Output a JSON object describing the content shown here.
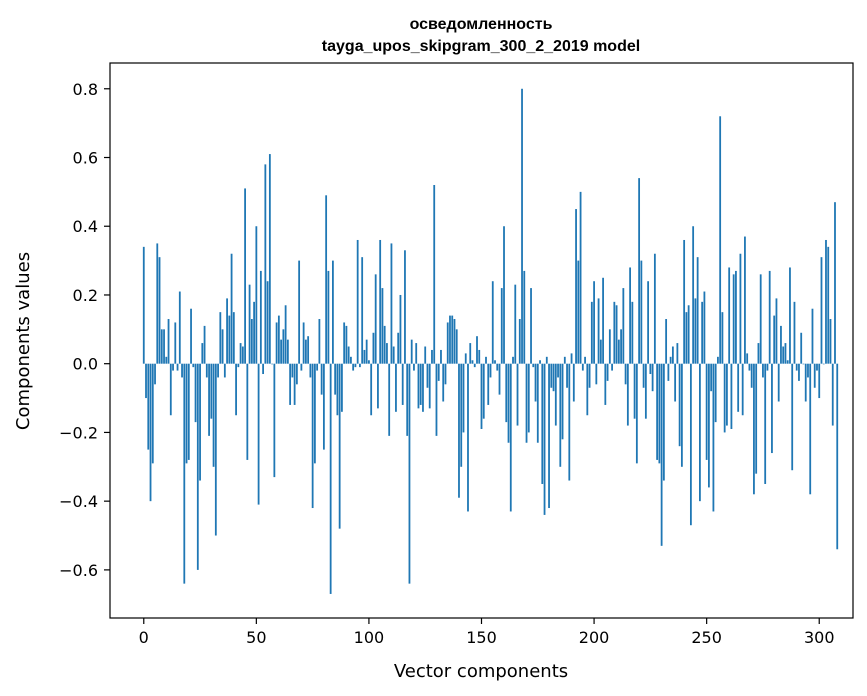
{
  "chart_data": {
    "type": "bar",
    "title": "осведомленность",
    "subtitle": "tayga_upos_skipgram_300_2_2019 model",
    "xlabel": "Vector components",
    "ylabel": "Components values",
    "xlim": [
      -15,
      315
    ],
    "ylim": [
      -0.74,
      0.875
    ],
    "xticks": [
      0,
      50,
      100,
      150,
      200,
      250,
      300
    ],
    "yticks": [
      -0.6,
      -0.4,
      -0.2,
      0.0,
      0.2,
      0.4,
      0.6,
      0.8
    ],
    "ytick_labels": [
      "−0.6",
      "−0.4",
      "−0.2",
      "0.0",
      "0.2",
      "0.4",
      "0.6",
      "0.8"
    ],
    "grid": false,
    "bar_color": "#1f77b4",
    "values": [
      0.34,
      -0.1,
      -0.25,
      -0.4,
      -0.29,
      -0.06,
      0.35,
      0.31,
      0.1,
      0.1,
      0.02,
      0.13,
      -0.15,
      -0.02,
      0.12,
      -0.02,
      0.21,
      -0.04,
      -0.64,
      -0.29,
      -0.28,
      0.16,
      -0.01,
      -0.17,
      -0.6,
      -0.34,
      0.06,
      0.11,
      -0.04,
      -0.21,
      -0.16,
      -0.3,
      -0.5,
      -0.04,
      0.15,
      0.1,
      -0.04,
      0.19,
      0.14,
      0.32,
      0.15,
      -0.15,
      -0.01,
      0.06,
      0.05,
      0.51,
      -0.28,
      0.23,
      0.13,
      0.18,
      0.4,
      -0.41,
      0.27,
      -0.03,
      0.58,
      0.24,
      0.61,
      0.0,
      -0.33,
      0.12,
      0.14,
      0.07,
      0.1,
      0.17,
      0.07,
      -0.12,
      -0.04,
      -0.12,
      -0.06,
      0.3,
      -0.02,
      0.12,
      0.07,
      0.08,
      -0.04,
      -0.42,
      -0.29,
      -0.02,
      0.13,
      -0.09,
      -0.25,
      0.49,
      0.27,
      -0.67,
      0.3,
      -0.09,
      -0.15,
      -0.48,
      -0.14,
      0.12,
      0.11,
      0.05,
      0.02,
      -0.02,
      -0.01,
      0.36,
      -0.01,
      0.31,
      0.04,
      0.07,
      0.01,
      -0.15,
      0.09,
      0.26,
      -0.13,
      0.36,
      0.22,
      0.11,
      0.06,
      -0.21,
      0.35,
      0.05,
      -0.14,
      0.09,
      0.2,
      -0.12,
      0.33,
      -0.21,
      -0.64,
      0.07,
      -0.02,
      0.06,
      -0.13,
      -0.12,
      -0.14,
      0.05,
      -0.07,
      -0.13,
      0.04,
      0.52,
      -0.21,
      -0.05,
      0.04,
      -0.11,
      -0.06,
      0.12,
      0.14,
      0.14,
      0.13,
      0.1,
      -0.39,
      -0.3,
      -0.2,
      0.03,
      -0.43,
      0.06,
      0.01,
      -0.01,
      0.08,
      0.04,
      -0.19,
      -0.16,
      0.02,
      -0.12,
      -0.04,
      0.24,
      0.01,
      -0.02,
      -0.09,
      0.22,
      0.4,
      -0.17,
      -0.23,
      -0.43,
      0.02,
      0.23,
      -0.18,
      0.13,
      0.8,
      0.27,
      -0.23,
      -0.2,
      0.22,
      -0.01,
      -0.11,
      -0.23,
      0.01,
      -0.35,
      -0.44,
      0.02,
      -0.42,
      -0.07,
      -0.08,
      -0.18,
      -0.04,
      -0.3,
      -0.22,
      0.02,
      -0.07,
      -0.34,
      0.03,
      -0.11,
      0.45,
      0.3,
      0.5,
      -0.02,
      0.02,
      -0.15,
      -0.07,
      0.18,
      0.24,
      -0.06,
      0.19,
      0.07,
      0.25,
      -0.12,
      -0.05,
      0.1,
      -0.02,
      0.18,
      0.17,
      0.07,
      0.1,
      0.22,
      -0.06,
      -0.18,
      0.28,
      0.18,
      -0.16,
      -0.29,
      0.54,
      0.3,
      -0.07,
      -0.16,
      0.24,
      -0.03,
      -0.08,
      0.32,
      -0.28,
      -0.29,
      -0.53,
      -0.34,
      0.13,
      -0.05,
      0.02,
      0.05,
      -0.11,
      0.06,
      -0.24,
      -0.3,
      0.36,
      0.15,
      0.17,
      -0.47,
      0.4,
      0.19,
      0.31,
      -0.4,
      0.18,
      0.21,
      -0.28,
      -0.36,
      -0.08,
      -0.43,
      -0.17,
      0.02,
      0.72,
      0.15,
      -0.2,
      -0.18,
      0.28,
      -0.19,
      0.26,
      0.27,
      -0.14,
      0.32,
      -0.15,
      0.37,
      0.03,
      -0.02,
      -0.07,
      -0.38,
      -0.32,
      0.06,
      0.26,
      -0.04,
      -0.35,
      -0.02,
      0.27,
      -0.26,
      0.14,
      0.19,
      -0.11,
      0.11,
      0.05,
      0.06,
      0.01,
      0.28,
      -0.31,
      0.18,
      -0.02,
      -0.05,
      0.09,
      0.0,
      -0.11,
      -0.04,
      -0.38,
      0.16,
      -0.07,
      -0.02,
      -0.1,
      0.31,
      0.0,
      0.36,
      0.34,
      0.13,
      -0.18,
      0.47,
      -0.54
    ]
  }
}
